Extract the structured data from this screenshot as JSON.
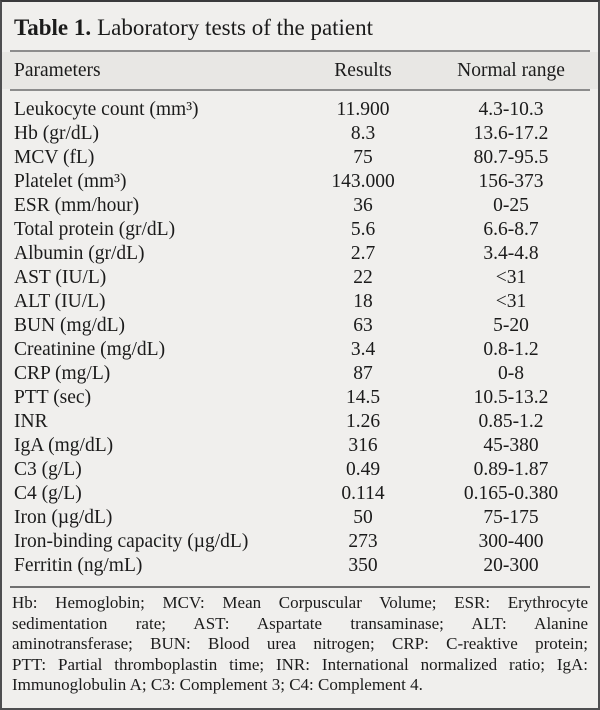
{
  "title": {
    "label": "Table 1.",
    "caption": "Laboratory tests of the patient"
  },
  "table": {
    "headers": {
      "parameter": "Parameters",
      "result": "Results",
      "range": "Normal range"
    },
    "rows": [
      {
        "parameter": "Leukocyte count (mm³)",
        "result": "11.900",
        "range": "4.3-10.3"
      },
      {
        "parameter": "Hb (gr/dL)",
        "result": "8.3",
        "range": "13.6-17.2"
      },
      {
        "parameter": "MCV (fL)",
        "result": "75",
        "range": "80.7-95.5"
      },
      {
        "parameter": "Platelet (mm³)",
        "result": "143.000",
        "range": "156-373"
      },
      {
        "parameter": "ESR (mm/hour)",
        "result": "36",
        "range": "0-25"
      },
      {
        "parameter": "Total protein (gr/dL)",
        "result": "5.6",
        "range": "6.6-8.7"
      },
      {
        "parameter": "Albumin (gr/dL)",
        "result": "2.7",
        "range": "3.4-4.8"
      },
      {
        "parameter": "AST (IU/L)",
        "result": "22",
        "range": "<31"
      },
      {
        "parameter": "ALT (IU/L)",
        "result": "18",
        "range": "<31"
      },
      {
        "parameter": "BUN (mg/dL)",
        "result": "63",
        "range": "5-20"
      },
      {
        "parameter": "Creatinine (mg/dL)",
        "result": "3.4",
        "range": "0.8-1.2"
      },
      {
        "parameter": "CRP (mg/L)",
        "result": "87",
        "range": "0-8"
      },
      {
        "parameter": "PTT (sec)",
        "result": "14.5",
        "range": "10.5-13.2"
      },
      {
        "parameter": "INR",
        "result": "1.26",
        "range": "0.85-1.2"
      },
      {
        "parameter": "IgA (mg/dL)",
        "result": "316",
        "range": "45-380"
      },
      {
        "parameter": "C3 (g/L)",
        "result": "0.49",
        "range": "0.89-1.87"
      },
      {
        "parameter": "C4 (g/L)",
        "result": "0.114",
        "range": "0.165-0.380"
      },
      {
        "parameter": "Iron (µg/dL)",
        "result": "50",
        "range": "75-175"
      },
      {
        "parameter": "Iron-binding capacity (µg/dL)",
        "result": "273",
        "range": "300-400"
      },
      {
        "parameter": "Ferritin (ng/mL)",
        "result": "350",
        "range": "20-300"
      }
    ]
  },
  "footnote": {
    "lines": [
      "Hb: Hemoglobin; MCV: Mean Corpuscular Volume; ESR: Erythrocyte",
      "sedimentation rate; AST: Aspartate transaminase; ALT: Alanine",
      "aminotransferase; BUN: Blood urea nitrogen; CRP: C-reaktive protein;",
      "PTT: Partial thromboplastin time; INR: International normalized ratio; IgA:",
      "Immunoglobulin A; C3: Complement 3; C4: Complement 4."
    ]
  },
  "colors": {
    "background": "#f0efed",
    "header_band": "#e8e7e4",
    "rule": "#8c8c8c",
    "border": "#4e4e50",
    "text": "#1b1b1b"
  }
}
